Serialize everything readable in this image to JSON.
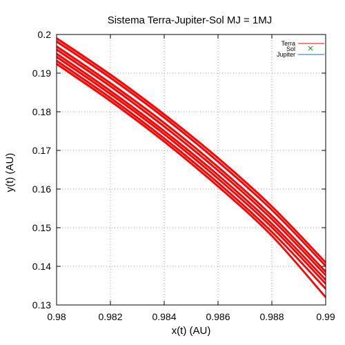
{
  "colors": {
    "terra": "#ff0000",
    "sol": "#009e00",
    "jupiter": "#0072bd",
    "grid": "#a0a0a0",
    "axis": "#000000"
  },
  "chart_data": {
    "type": "line",
    "title": "Sistema Terra-Jupiter-Sol MJ = 1MJ",
    "xlabel": "x(t) (AU)",
    "ylabel": "y(t) (AU)",
    "xlim": [
      0.98,
      0.99
    ],
    "ylim": [
      0.13,
      0.2
    ],
    "xticks": [
      0.98,
      0.982,
      0.984,
      0.986,
      0.988,
      0.99
    ],
    "xtick_labels": [
      "0.98",
      "0.982",
      "0.984",
      "0.986",
      "0.988",
      "0.99"
    ],
    "yticks": [
      0.13,
      0.14,
      0.15,
      0.16,
      0.17,
      0.18,
      0.19,
      0.2
    ],
    "ytick_labels": [
      "0.13",
      "0.14",
      "0.15",
      "0.16",
      "0.17",
      "0.18",
      "0.19",
      "0.2"
    ],
    "grid": true,
    "legend_position": "top-right",
    "legend": [
      {
        "name": "Terra",
        "marker": "line",
        "color": "#ff0000"
      },
      {
        "name": "Sol",
        "marker": "cross",
        "color": "#009e00"
      },
      {
        "name": "Jupiter",
        "marker": "line",
        "color": "#0072bd"
      }
    ],
    "series": [
      {
        "name": "Terra",
        "color": "#ff0000",
        "tracks": [
          {
            "x": [
              0.98,
              0.982,
              0.984,
              0.986,
              0.988,
              0.99
            ],
            "y": [
              0.199,
              0.1896,
              0.1793,
              0.168,
              0.1555,
              0.141
            ]
          },
          {
            "x": [
              0.98,
              0.982,
              0.984,
              0.986,
              0.988,
              0.99
            ],
            "y": [
              0.1982,
              0.1888,
              0.1785,
              0.1671,
              0.1546,
              0.1401
            ]
          },
          {
            "x": [
              0.98,
              0.982,
              0.984,
              0.986,
              0.988,
              0.99
            ],
            "y": [
              0.1969,
              0.1874,
              0.1771,
              0.1657,
              0.1531,
              0.1386
            ]
          },
          {
            "x": [
              0.98,
              0.982,
              0.984,
              0.986,
              0.988,
              0.99
            ],
            "y": [
              0.1961,
              0.1866,
              0.1762,
              0.1648,
              0.1522,
              0.1377
            ]
          },
          {
            "x": [
              0.98,
              0.982,
              0.984,
              0.986,
              0.988,
              0.99
            ],
            "y": [
              0.195,
              0.1854,
              0.175,
              0.1636,
              0.151,
              0.1365
            ]
          },
          {
            "x": [
              0.98,
              0.982,
              0.984,
              0.986,
              0.988,
              0.99
            ],
            "y": [
              0.1942,
              0.1846,
              0.1742,
              0.1627,
              0.1501,
              0.1355
            ]
          },
          {
            "x": [
              0.98,
              0.982,
              0.984,
              0.986,
              0.988,
              0.99
            ],
            "y": [
              0.1932,
              0.1836,
              0.1731,
              0.1616,
              0.1489,
              0.1342
            ]
          },
          {
            "x": [
              0.98,
              0.982,
              0.984,
              0.986,
              0.988,
              0.99
            ],
            "y": [
              0.1924,
              0.1828,
              0.1723,
              0.1607,
              0.1479,
              0.132
            ]
          }
        ]
      },
      {
        "name": "Jupiter",
        "color": "#0072bd",
        "tracks": []
      }
    ]
  }
}
